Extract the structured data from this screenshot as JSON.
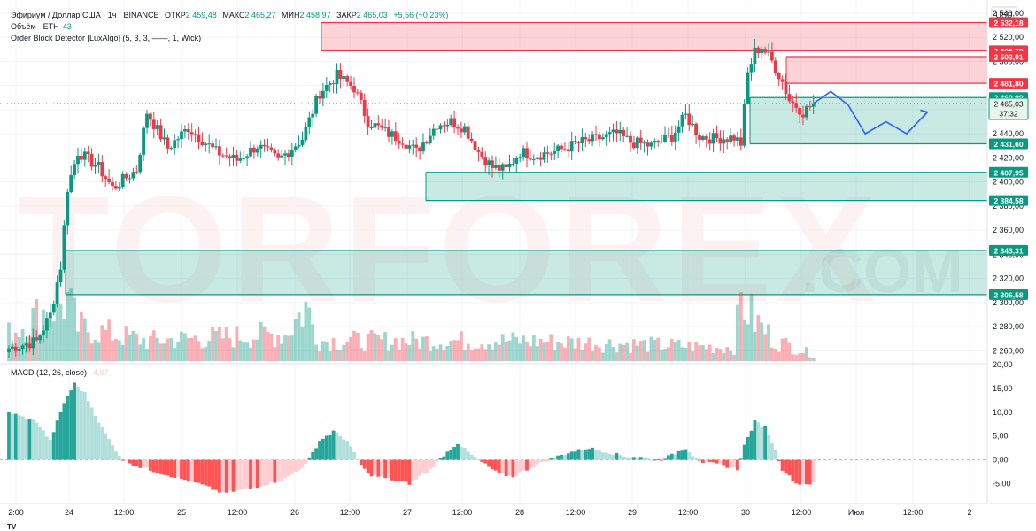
{
  "header": {
    "line1": {
      "symbol": "Эфириум / Доллар США · 1ч · BINANCE",
      "open_label": "ОТКР",
      "open": "2 459,48",
      "high_label": "МАКС",
      "high": "2 465,27",
      "low_label": "МИН",
      "low": "2 458,97",
      "close_label": "ЗАКР",
      "close": "2 465,03",
      "change": "+5,56 (+0,23%)"
    },
    "line2": {
      "label": "Объём · ETH",
      "value": "43"
    },
    "line3": {
      "label": "Order Block Detector [LuxAlgo] (5, 3, 3, ——, 1, Wick)"
    }
  },
  "macd_header": {
    "label": "MACD (12, 26, close)",
    "value": "-4,87"
  },
  "currency": "USD",
  "price_badges": {
    "current": "2 465,03",
    "countdown": "37:32"
  },
  "footer_logo": "TV",
  "watermark": {
    "main": "TORFOREX",
    "suffix": ".COM"
  },
  "colors": {
    "up": "#089981",
    "down": "#f23645",
    "bear_zone": "#f23645",
    "bull_zone": "#089981",
    "projection": "#2962ff",
    "macd_pos_strong": "#26a69a",
    "macd_pos_weak": "#b2dfdb",
    "macd_neg_strong": "#ff5252",
    "macd_neg_weak": "#ffcdd2"
  },
  "chart_data": [
    {
      "type": "candlestick",
      "title": "Эфириум / Доллар США · 1ч · BINANCE",
      "x_ticks": [
        "2:00",
        "24",
        "12:00",
        "25",
        "12:00",
        "26",
        "12:00",
        "27",
        "12:00",
        "28",
        "12:00",
        "29",
        "12:00",
        "30",
        "12:00",
        "Июл",
        "12:00",
        "2"
      ],
      "y_ticks": [
        "2 260,00",
        "2 280,00",
        "2 300,00",
        "2 320,00",
        "2 340,00",
        "2 360,00",
        "2 380,00",
        "2 400,00",
        "2 420,00",
        "2 440,00",
        "2 460,00",
        "2 480,00",
        "2 500,00",
        "2 520,00",
        "2 540,00"
      ],
      "ylim": [
        2250,
        2545
      ],
      "series": [
        {
          "name": "ETH price 1h",
          "anchors": [
            [
              0,
              2262
            ],
            [
              8,
              2268
            ],
            [
              12,
              2290
            ],
            [
              15,
              2330
            ],
            [
              17,
              2395
            ],
            [
              20,
              2425
            ],
            [
              26,
              2412
            ],
            [
              30,
              2395
            ],
            [
              37,
              2410
            ],
            [
              40,
              2458
            ],
            [
              46,
              2428
            ],
            [
              52,
              2445
            ],
            [
              60,
              2425
            ],
            [
              66,
              2418
            ],
            [
              72,
              2430
            ],
            [
              78,
              2418
            ],
            [
              85,
              2436
            ],
            [
              90,
              2474
            ],
            [
              95,
              2488
            ],
            [
              100,
              2478
            ],
            [
              104,
              2450
            ],
            [
              110,
              2440
            ],
            [
              114,
              2435
            ],
            [
              118,
              2425
            ],
            [
              124,
              2448
            ],
            [
              128,
              2450
            ],
            [
              132,
              2445
            ],
            [
              136,
              2425
            ],
            [
              140,
              2412
            ],
            [
              144,
              2410
            ],
            [
              148,
              2425
            ],
            [
              152,
              2422
            ],
            [
              158,
              2425
            ],
            [
              166,
              2433
            ],
            [
              172,
              2437
            ],
            [
              176,
              2440
            ],
            [
              180,
              2433
            ],
            [
              186,
              2430
            ],
            [
              192,
              2438
            ],
            [
              196,
              2455
            ],
            [
              200,
              2438
            ],
            [
              204,
              2436
            ],
            [
              210,
              2437
            ],
            [
              212,
              2432
            ],
            [
              214,
              2490
            ],
            [
              216,
              2508
            ],
            [
              218,
              2512
            ],
            [
              221,
              2500
            ],
            [
              224,
              2483
            ],
            [
              226,
              2468
            ],
            [
              230,
              2458
            ],
            [
              233,
              2465
            ]
          ]
        }
      ],
      "order_blocks": [
        {
          "kind": "bearish",
          "top": 2532.18,
          "bottom": 2508.79,
          "labels": [
            "2 532,18",
            "2 508,79"
          ]
        },
        {
          "kind": "bearish",
          "top": 2503.91,
          "bottom": 2481.8,
          "labels": [
            "2 503,91",
            "2 481,80"
          ]
        },
        {
          "kind": "bullish",
          "top": 2469.99,
          "bottom": 2431.6,
          "labels": [
            "2 469,99",
            "2 431,60"
          ]
        },
        {
          "kind": "bullish",
          "top": 2407.95,
          "bottom": 2384.58,
          "labels": [
            "2 407,95",
            "2 384,58"
          ]
        },
        {
          "kind": "bullish",
          "top": 2343.31,
          "bottom": 2306.58,
          "labels": [
            "2 343,31",
            "2 306,58"
          ]
        }
      ],
      "projection": [
        [
          233,
          2465
        ],
        [
          238,
          2475
        ],
        [
          243,
          2464
        ],
        [
          248,
          2440
        ],
        [
          254,
          2450
        ],
        [
          260,
          2440
        ],
        [
          266,
          2458
        ]
      ]
    },
    {
      "type": "bar",
      "title": "MACD (12, 26, close)",
      "y_ticks": [
        "-5,00",
        "0,00",
        "5,00",
        "10,00",
        "15,00",
        "20,00"
      ],
      "ylim": [
        -9,
        20
      ],
      "anchors": [
        [
          0,
          10
        ],
        [
          8,
          8
        ],
        [
          12,
          4
        ],
        [
          16,
          12
        ],
        [
          19,
          16
        ],
        [
          22,
          14
        ],
        [
          26,
          8
        ],
        [
          30,
          3
        ],
        [
          33,
          0
        ],
        [
          38,
          -1.5
        ],
        [
          45,
          -3
        ],
        [
          55,
          -5
        ],
        [
          62,
          -7
        ],
        [
          70,
          -6
        ],
        [
          80,
          -4
        ],
        [
          86,
          -1
        ],
        [
          90,
          4
        ],
        [
          94,
          6
        ],
        [
          98,
          4
        ],
        [
          101,
          0
        ],
        [
          104,
          -3
        ],
        [
          110,
          -4
        ],
        [
          116,
          -5
        ],
        [
          122,
          -2
        ],
        [
          126,
          1
        ],
        [
          130,
          3.5
        ],
        [
          134,
          1
        ],
        [
          138,
          -1
        ],
        [
          142,
          -3
        ],
        [
          146,
          -3.5
        ],
        [
          150,
          -2
        ],
        [
          156,
          0
        ],
        [
          162,
          1.5
        ],
        [
          168,
          2.5
        ],
        [
          174,
          1.5
        ],
        [
          178,
          0.8
        ],
        [
          184,
          0.5
        ],
        [
          188,
          0
        ],
        [
          192,
          1
        ],
        [
          196,
          2.5
        ],
        [
          198,
          1
        ],
        [
          201,
          -0.5
        ],
        [
          206,
          -1
        ],
        [
          211,
          -2
        ],
        [
          213,
          3
        ],
        [
          216,
          8
        ],
        [
          219,
          7
        ],
        [
          222,
          2
        ],
        [
          224,
          -2
        ],
        [
          228,
          -5
        ],
        [
          233,
          -5
        ]
      ]
    },
    {
      "type": "bar",
      "title": "Объём · ETH",
      "anchors": [
        [
          0,
          0.4
        ],
        [
          12,
          0.8
        ],
        [
          17,
          0.9
        ],
        [
          20,
          0.5
        ],
        [
          40,
          0.3
        ],
        [
          80,
          0.4
        ],
        [
          86,
          0.8
        ],
        [
          90,
          0.3
        ],
        [
          150,
          0.3
        ],
        [
          210,
          0.2
        ],
        [
          212,
          0.9
        ],
        [
          216,
          0.6
        ],
        [
          222,
          0.3
        ],
        [
          233,
          0.1
        ]
      ]
    }
  ]
}
